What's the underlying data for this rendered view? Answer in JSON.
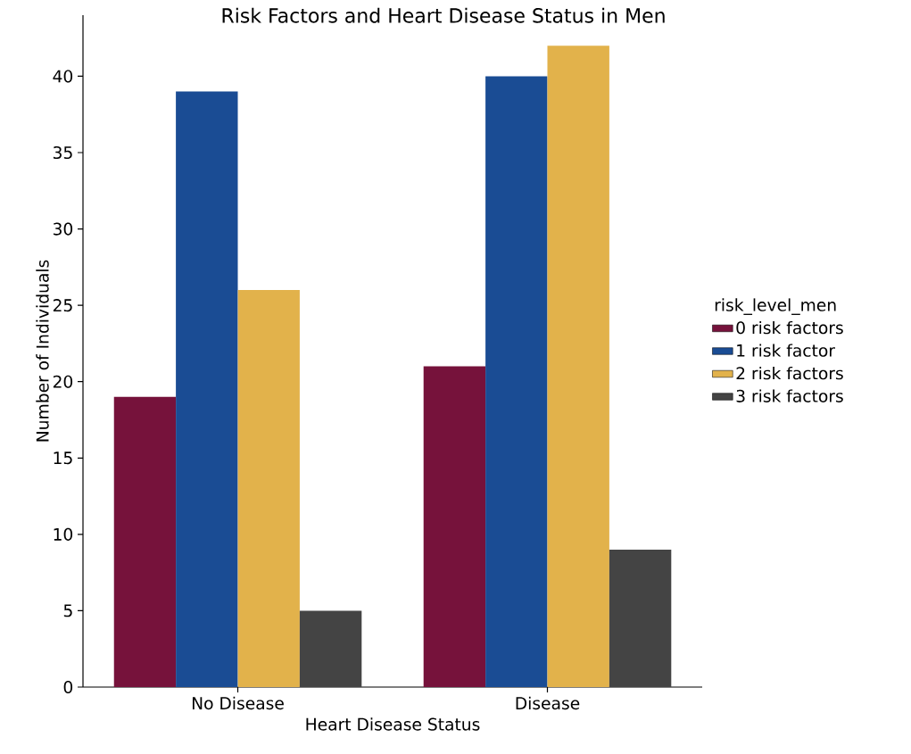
{
  "chart_data": {
    "type": "bar",
    "title": "Risk Factors and Heart Disease Status in Men",
    "xlabel": "Heart Disease Status",
    "ylabel": "Number of Individuals",
    "legend_title": "risk_level_men",
    "legend": "right",
    "categories": [
      "No Disease",
      "Disease"
    ],
    "series": [
      {
        "name": "0 risk factors",
        "color": "#76123b",
        "values": [
          19,
          21
        ]
      },
      {
        "name": "1 risk factor",
        "color": "#1a4c94",
        "values": [
          39,
          40
        ]
      },
      {
        "name": "2 risk factors",
        "color": "#e2b24b",
        "values": [
          26,
          42
        ]
      },
      {
        "name": "3 risk factors",
        "color": "#444444",
        "values": [
          5,
          9
        ]
      }
    ],
    "ylim": [
      0,
      44
    ],
    "yticks": [
      0,
      5,
      10,
      15,
      20,
      25,
      30,
      35,
      40
    ]
  }
}
